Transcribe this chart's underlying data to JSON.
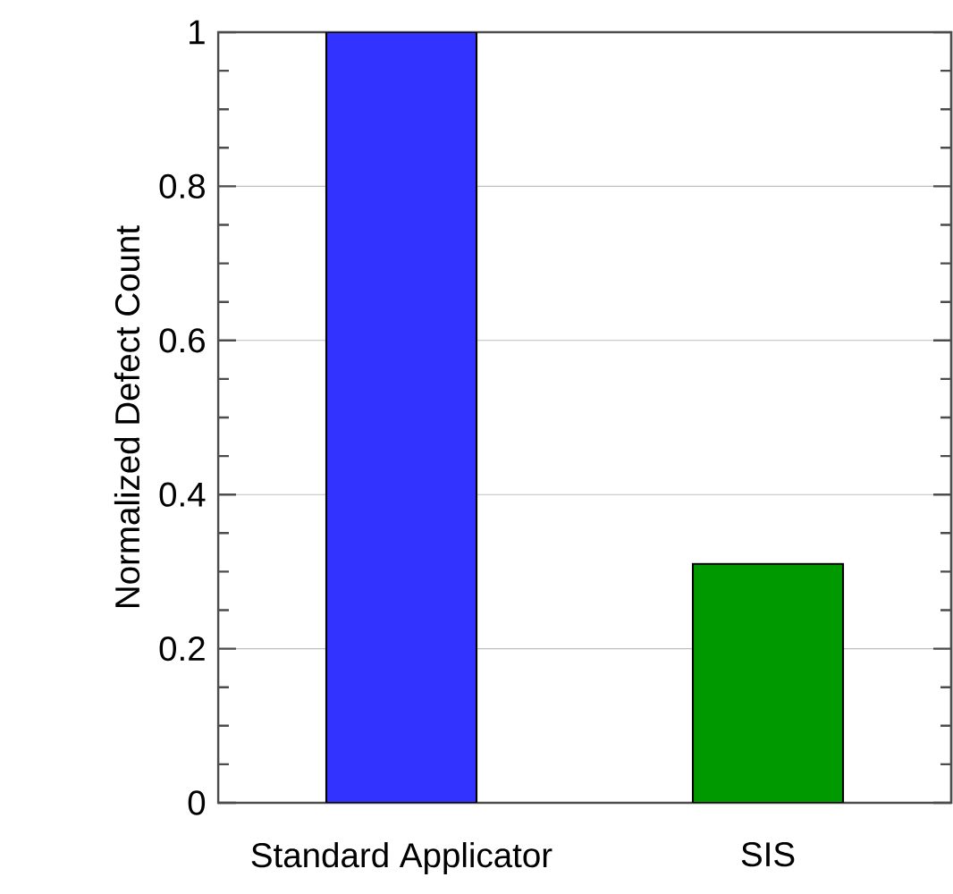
{
  "chart_data": {
    "type": "bar",
    "ylabel": "Normalized Defect Count",
    "categories": [
      "Standard Applicator",
      "SIS"
    ],
    "values": [
      1.0,
      0.31
    ],
    "colors": [
      "#3333ff",
      "#009900"
    ],
    "ylim": [
      0,
      1
    ],
    "yticks": [
      0,
      0.2,
      0.4,
      0.6,
      0.8,
      1
    ],
    "grid": "y"
  }
}
